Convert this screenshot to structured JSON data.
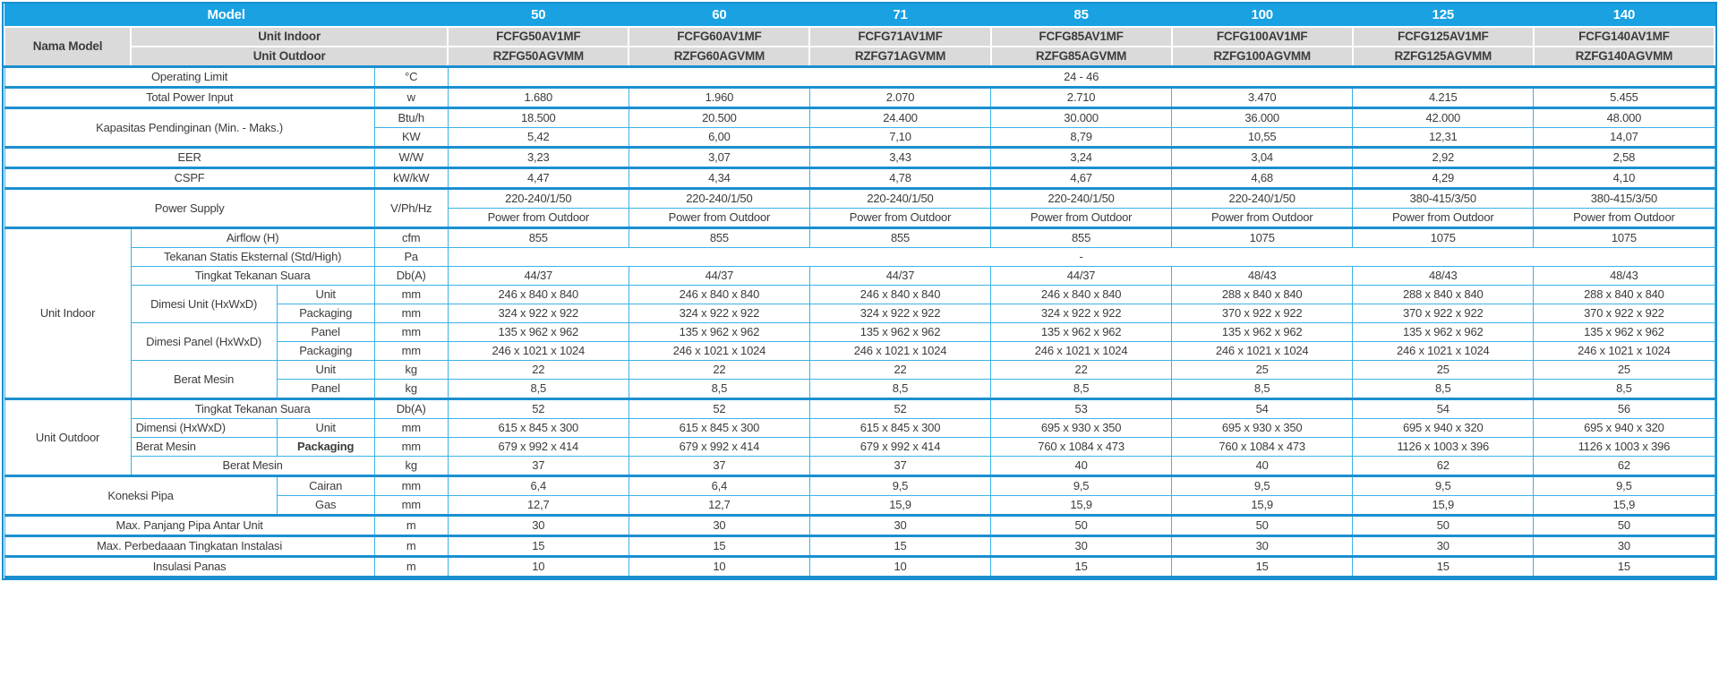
{
  "colors": {
    "header_bg": "#19a1e2",
    "header_text": "#ffffff",
    "subheader_bg": "#dadada",
    "border_thin": "#3ab2e6",
    "border_thick": "#1b8fd0",
    "text": "#3c3c3c"
  },
  "header": {
    "model_label": "Model",
    "sizes": [
      "50",
      "60",
      "71",
      "85",
      "100",
      "125",
      "140"
    ],
    "nama_model": "Nama Model",
    "unit_indoor": "Unit Indoor",
    "unit_outdoor": "Unit Outdoor",
    "indoor_models": [
      "FCFG50AV1MF",
      "FCFG60AV1MF",
      "FCFG71AV1MF",
      "FCFG85AV1MF",
      "FCFG100AV1MF",
      "FCFG125AV1MF",
      "FCFG140AV1MF"
    ],
    "outdoor_models": [
      "RZFG50AGVMM",
      "RZFG60AGVMM",
      "RZFG71AGVMM",
      "RZFG85AGVMM",
      "RZFG100AGVMM",
      "RZFG125AGVMM",
      "RZFG140AGVMM"
    ]
  },
  "specs": {
    "operating_limit": {
      "label": "Operating Limit",
      "unit": "°C",
      "value": "24 - 46"
    },
    "total_power_input": {
      "label": "Total Power Input",
      "unit": "w",
      "values": [
        "1.680",
        "1.960",
        "2.070",
        "2.710",
        "3.470",
        "4.215",
        "5.455"
      ]
    },
    "kapasitas": {
      "label": "Kapasitas Pendinginan (Min. - Maks.)",
      "btu_unit": "Btu/h",
      "btu_values": [
        "18.500",
        "20.500",
        "24.400",
        "30.000",
        "36.000",
        "42.000",
        "48.000"
      ],
      "kw_unit": "KW",
      "kw_values": [
        "5,42",
        "6,00",
        "7,10",
        "8,79",
        "10,55",
        "12,31",
        "14,07"
      ]
    },
    "eer": {
      "label": "EER",
      "unit": "W/W",
      "values": [
        "3,23",
        "3,07",
        "3,43",
        "3,24",
        "3,04",
        "2,92",
        "2,58"
      ]
    },
    "cspf": {
      "label": "CSPF",
      "unit": "kW/kW",
      "values": [
        "4,47",
        "4,34",
        "4,78",
        "4,67",
        "4,68",
        "4,29",
        "4,10"
      ]
    },
    "power_supply": {
      "label": "Power Supply",
      "unit": "V/Ph/Hz",
      "voltages": [
        "220-240/1/50",
        "220-240/1/50",
        "220-240/1/50",
        "220-240/1/50",
        "220-240/1/50",
        "380-415/3/50",
        "380-415/3/50"
      ],
      "sources": [
        "Power from Outdoor",
        "Power from Outdoor",
        "Power from Outdoor",
        "Power from Outdoor",
        "Power from Outdoor",
        "Power from Outdoor",
        "Power from Outdoor"
      ]
    },
    "indoor": {
      "label": "Unit Indoor",
      "airflow": {
        "label": "Airflow (H)",
        "unit": "cfm",
        "values": [
          "855",
          "855",
          "855",
          "855",
          "1075",
          "1075",
          "1075"
        ]
      },
      "static_pressure": {
        "label": "Tekanan Statis Eksternal (Std/High)",
        "unit": "Pa",
        "value": "-"
      },
      "sound": {
        "label": "Tingkat Tekanan Suara",
        "unit": "Db(A)",
        "values": [
          "44/37",
          "44/37",
          "44/37",
          "44/37",
          "48/43",
          "48/43",
          "48/43"
        ]
      },
      "dim_unit": {
        "label": "Dimesi Unit (HxWxD)",
        "sub_unit": "Unit",
        "sub_packaging": "Packaging",
        "unit": "mm",
        "unit_values": [
          "246 x 840 x 840",
          "246 x 840 x 840",
          "246 x 840 x 840",
          "246 x 840 x 840",
          "288 x 840 x 840",
          "288 x 840 x 840",
          "288 x 840 x 840"
        ],
        "packaging_values": [
          "324 x 922 x 922",
          "324 x 922 x 922",
          "324 x 922 x 922",
          "324 x 922 x 922",
          "370 x 922 x 922",
          "370 x 922 x 922",
          "370 x 922 x 922"
        ]
      },
      "dim_panel": {
        "label": "Dimesi Panel (HxWxD)",
        "sub_panel": "Panel",
        "sub_packaging": "Packaging",
        "unit": "mm",
        "panel_values": [
          "135 x 962 x 962",
          "135 x 962 x 962",
          "135 x 962 x 962",
          "135 x 962 x 962",
          "135 x 962 x 962",
          "135 x 962 x 962",
          "135 x 962 x 962"
        ],
        "packaging_values": [
          "246 x 1021 x 1024",
          "246 x 1021 x 1024",
          "246 x 1021 x 1024",
          "246 x 1021 x 1024",
          "246 x 1021 x 1024",
          "246 x 1021 x 1024",
          "246 x 1021 x 1024"
        ]
      },
      "weight": {
        "label": "Berat Mesin",
        "sub_unit": "Unit",
        "sub_panel": "Panel",
        "unit": "kg",
        "unit_values": [
          "22",
          "22",
          "22",
          "22",
          "25",
          "25",
          "25"
        ],
        "panel_values": [
          "8,5",
          "8,5",
          "8,5",
          "8,5",
          "8,5",
          "8,5",
          "8,5"
        ]
      }
    },
    "outdoor": {
      "label": "Unit Outdoor",
      "sound": {
        "label": "Tingkat Tekanan Suara",
        "unit": "Db(A)",
        "values": [
          "52",
          "52",
          "52",
          "53",
          "54",
          "54",
          "56"
        ]
      },
      "dimension": {
        "label": "Dimensi (HxWxD)",
        "sub": "Unit",
        "unit": "mm",
        "values": [
          "615 x 845 x 300",
          "615 x 845 x 300",
          "615 x 845 x 300",
          "695 x 930 x 350",
          "695 x 930 x 350",
          "695 x 940 x 320",
          "695 x 940 x 320"
        ]
      },
      "weight_packaging": {
        "label": "Berat Mesin",
        "sub": "Packaging",
        "unit": "mm",
        "values": [
          "679 x 992 x 414",
          "679 x 992 x 414",
          "679 x 992 x 414",
          "760 x 1084 x 473",
          "760 x 1084 x 473",
          "1126 x 1003 x 396",
          "1126 x 1003 x 396"
        ]
      },
      "weight": {
        "label": "Berat Mesin",
        "unit": "kg",
        "values": [
          "37",
          "37",
          "37",
          "40",
          "40",
          "62",
          "62"
        ]
      }
    },
    "koneksi": {
      "label": "Koneksi Pipa",
      "cairan": {
        "sub": "Cairan",
        "unit": "mm",
        "values": [
          "6,4",
          "6,4",
          "9,5",
          "9,5",
          "9,5",
          "9,5",
          "9,5"
        ]
      },
      "gas": {
        "sub": "Gas",
        "unit": "mm",
        "values": [
          "12,7",
          "12,7",
          "15,9",
          "15,9",
          "15,9",
          "15,9",
          "15,9"
        ]
      }
    },
    "max_pipe": {
      "label": "Max. Panjang Pipa Antar Unit",
      "unit": "m",
      "values": [
        "30",
        "30",
        "30",
        "50",
        "50",
        "50",
        "50"
      ]
    },
    "max_elev": {
      "label": "Max. Perbedaaan Tingkatan Instalasi",
      "unit": "m",
      "values": [
        "15",
        "15",
        "15",
        "30",
        "30",
        "30",
        "30"
      ]
    },
    "insulation": {
      "label": "Insulasi Panas",
      "unit": "m",
      "values": [
        "10",
        "10",
        "10",
        "15",
        "15",
        "15",
        "15"
      ]
    }
  }
}
